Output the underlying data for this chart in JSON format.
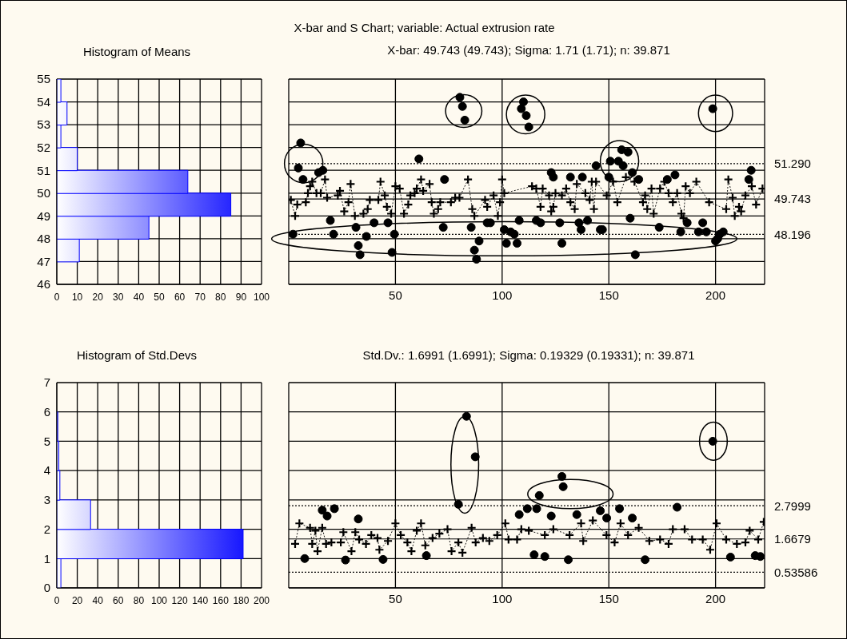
{
  "chart_data": [
    {
      "type": "histogram",
      "orientation": "horizontal",
      "title": "Histogram of Means",
      "bins": [
        46,
        47,
        48,
        49,
        50,
        51,
        52,
        53,
        54,
        55
      ],
      "values": [
        0,
        11,
        45,
        85,
        64,
        10,
        2,
        5,
        2
      ],
      "color": "#0000ff",
      "xlim": [
        0,
        100
      ],
      "xticks": [
        0,
        10,
        20,
        30,
        40,
        50,
        60,
        70,
        80,
        90,
        100
      ],
      "ylim": [
        46,
        55
      ],
      "yticks": [
        46,
        47,
        48,
        49,
        50,
        51,
        52,
        53,
        54,
        55
      ],
      "grid": true
    },
    {
      "type": "line",
      "title": "X-bar and S Chart; variable:  Actual extrusion rate",
      "subtitle": "X-bar: 49.743 (49.743); Sigma: 1.71 (1.71); n: 39.871",
      "xlim": [
        0,
        223
      ],
      "xticks": [
        50,
        100,
        150,
        200
      ],
      "ylim": [
        46,
        55
      ],
      "yticks": [
        46,
        47,
        48,
        49,
        50,
        51,
        52,
        53,
        54,
        55
      ],
      "tick_labels": "x",
      "grid": true,
      "ref_lines": [
        {
          "axis": "y",
          "value": 51.29,
          "label": "51.290",
          "line_style": "dotted"
        },
        {
          "axis": "y",
          "value": 49.743,
          "label": "49.743",
          "line_style": "solid"
        },
        {
          "axis": "y",
          "value": 48.196,
          "label": "48.196",
          "line_style": "dotted"
        }
      ],
      "series": [
        {
          "type": "line",
          "marker": "cross",
          "line_style": "dotted",
          "color": "#000000",
          "x": [
            1,
            3,
            4,
            8,
            9,
            10,
            11,
            13,
            15,
            17,
            18,
            23,
            24,
            26,
            28,
            29,
            31,
            35,
            37,
            38,
            42,
            43,
            45,
            46,
            48,
            50,
            52,
            54,
            56,
            57,
            59,
            60,
            62,
            63,
            66,
            67,
            68,
            70,
            71,
            76,
            78,
            80,
            84,
            86,
            87,
            92,
            93,
            96,
            98,
            99,
            100,
            101,
            114,
            116,
            118,
            119,
            122,
            123,
            124,
            125,
            128,
            130,
            132,
            134,
            135,
            139,
            141,
            142,
            143,
            144,
            149,
            152,
            154,
            158,
            162,
            166,
            167,
            168,
            170,
            171,
            174,
            176,
            178,
            180,
            182,
            184,
            185,
            186,
            188,
            191,
            197,
            205,
            206,
            208,
            209,
            211,
            212,
            214,
            217,
            219,
            222
          ],
          "values": [
            49.7,
            49.0,
            49.5,
            49.6,
            50.0,
            50.3,
            50.5,
            50.0,
            50.0,
            50.6,
            49.8,
            49.9,
            50.1,
            49.2,
            49.6,
            50.4,
            49.0,
            49.1,
            49.3,
            49.7,
            49.7,
            50.5,
            49.9,
            49.4,
            49.1,
            50.3,
            50.2,
            49.1,
            49.5,
            49.9,
            50.0,
            50.2,
            50.6,
            50.1,
            50.4,
            49.6,
            49.1,
            49.3,
            49.6,
            49.6,
            49.8,
            49.8,
            50.6,
            49.3,
            49.0,
            49.7,
            49.4,
            49.9,
            49.0,
            49.6,
            50.6,
            50.0,
            50.3,
            50.2,
            49.4,
            50.2,
            49.9,
            49.2,
            49.4,
            50.0,
            49.9,
            50.2,
            49.6,
            49.3,
            50.4,
            50.0,
            49.7,
            50.5,
            49.3,
            50.5,
            49.9,
            50.5,
            49.6,
            50.7,
            50.5,
            49.6,
            49.9,
            49.3,
            50.2,
            49.1,
            50.2,
            50.5,
            50.0,
            49.6,
            50.0,
            49.1,
            48.9,
            50.3,
            50.0,
            50.5,
            49.6,
            49.3,
            50.6,
            49.8,
            49.0,
            49.4,
            49.2,
            49.9,
            50.3,
            49.5,
            50.2
          ]
        },
        {
          "type": "scatter",
          "marker": "circle",
          "color": "#000000",
          "x": [
            2,
            4.5,
            5.6,
            6.7,
            14,
            16,
            19.5,
            21,
            31.5,
            32.6,
            33.4,
            36.4,
            40,
            46.5,
            48.4,
            49.5,
            61,
            72.4,
            73,
            80.2,
            81.4,
            82.5,
            85.5,
            87,
            88,
            89.2,
            93,
            94.5,
            101,
            102,
            104,
            105.7,
            107,
            108,
            109,
            110,
            111.3,
            112.5,
            116,
            118,
            123,
            124,
            127,
            128,
            132,
            136,
            137,
            137.6,
            140,
            144,
            146,
            147,
            150,
            150.7,
            154.5,
            156,
            156.7,
            159,
            160,
            161,
            162.4,
            164,
            173.6,
            177.4,
            181,
            183.7,
            186.7,
            192,
            194,
            195.7,
            198.7,
            200,
            201,
            202,
            203.6,
            215.6,
            216.7
          ],
          "values": [
            48.2,
            51.1,
            52.2,
            50.6,
            50.9,
            51.0,
            48.8,
            48.2,
            48.5,
            47.7,
            47.3,
            48.1,
            48.7,
            48.7,
            47.4,
            48.2,
            51.5,
            48.5,
            50.6,
            54.2,
            53.8,
            53.2,
            48.5,
            47.5,
            47.1,
            47.9,
            48.7,
            48.7,
            48.4,
            47.8,
            48.3,
            48.2,
            47.8,
            48.8,
            53.7,
            54.0,
            53.4,
            52.9,
            48.8,
            48.7,
            50.9,
            50.7,
            48.7,
            47.8,
            50.7,
            48.7,
            48.4,
            50.7,
            48.8,
            51.2,
            48.4,
            48.4,
            50.7,
            51.4,
            51.4,
            51.9,
            51.2,
            51.8,
            48.9,
            50.9,
            47.3,
            50.6,
            48.5,
            50.6,
            50.8,
            48.3,
            48.7,
            48.3,
            48.7,
            48.3,
            53.7,
            47.9,
            48.0,
            48.2,
            48.3,
            50.6,
            51.0
          ]
        }
      ]
    },
    {
      "type": "histogram",
      "orientation": "horizontal",
      "title": "Histogram of Std.Devs",
      "bins": [
        0,
        1,
        2,
        3,
        4,
        5,
        6,
        7
      ],
      "values": [
        4,
        182,
        33,
        3,
        2,
        1,
        0
      ],
      "color": "#0000ff",
      "xlim": [
        0,
        200
      ],
      "xticks": [
        0,
        20,
        40,
        60,
        80,
        100,
        120,
        140,
        160,
        180,
        200
      ],
      "ylim": [
        0,
        7
      ],
      "yticks": [
        0,
        1,
        2,
        3,
        4,
        5,
        6,
        7
      ],
      "grid": true
    },
    {
      "type": "line",
      "title": "Std.Dv.: 1.6991 (1.6991); Sigma: 0.19329 (0.19331); n: 39.871",
      "xlim": [
        0,
        223
      ],
      "xticks": [
        50,
        100,
        150,
        200
      ],
      "ylim": [
        0,
        7
      ],
      "yticks": [
        0,
        1,
        2,
        3,
        4,
        5,
        6,
        7
      ],
      "tick_labels": "x",
      "grid": true,
      "ref_lines": [
        {
          "axis": "y",
          "value": 2.7999,
          "label": "2.7999",
          "line_style": "dotted"
        },
        {
          "axis": "y",
          "value": 1.6679,
          "label": "1.6679",
          "line_style": "solid"
        },
        {
          "axis": "y",
          "value": 0.53586,
          "label": "0.53586",
          "line_style": "dotted"
        }
      ],
      "series": [
        {
          "type": "line",
          "marker": "cross",
          "line_style": "dotted",
          "color": "#000000",
          "x": [
            3,
            5,
            10,
            11,
            12.5,
            13.5,
            15.7,
            17.5,
            20,
            24.4,
            25.6,
            29.4,
            31.2,
            33,
            36.2,
            38.7,
            41.6,
            42.5,
            46.5,
            50,
            52.5,
            55.6,
            57.5,
            60,
            62,
            64,
            67.4,
            70.6,
            74.4,
            76.3,
            79.5,
            81.4,
            85.7,
            87.6,
            91,
            94,
            97.7,
            101.5,
            103,
            107,
            109,
            112.5,
            120,
            124,
            131.6,
            137,
            138,
            142.5,
            148.9,
            152.7,
            155.5,
            159,
            164,
            169,
            174,
            178,
            180,
            185.5,
            189,
            194,
            197.5,
            200.5,
            205,
            210,
            214,
            216,
            220,
            222.6
          ],
          "values": [
            1.5,
            2.2,
            2.05,
            1.5,
            1.95,
            1.25,
            2.05,
            1.5,
            1.55,
            1.55,
            1.9,
            1.25,
            1.9,
            1.65,
            1.5,
            1.8,
            1.7,
            1.3,
            1.6,
            2.2,
            1.8,
            1.55,
            1.25,
            1.95,
            2.2,
            1.45,
            1.7,
            1.85,
            2.0,
            1.25,
            1.55,
            1.2,
            2.05,
            1.55,
            1.7,
            1.6,
            1.8,
            2.2,
            1.65,
            1.65,
            2.0,
            1.95,
            1.8,
            2.0,
            1.8,
            2.2,
            1.6,
            2.3,
            1.8,
            1.55,
            2.2,
            1.8,
            2.05,
            1.6,
            1.65,
            1.5,
            2.0,
            2.0,
            1.65,
            1.65,
            1.3,
            2.2,
            1.65,
            1.5,
            1.55,
            1.95,
            1.65,
            2.25
          ]
        },
        {
          "type": "scatter",
          "marker": "circle",
          "color": "#000000",
          "x": [
            7.5,
            15.7,
            18,
            21.4,
            26.6,
            32.6,
            44.2,
            64.5,
            79.5,
            83.3,
            87.4,
            108,
            111.8,
            115,
            116.2,
            117.4,
            120,
            123,
            128,
            128.6,
            131,
            135,
            146,
            149,
            155,
            161,
            167,
            182,
            198.7,
            207,
            218.6,
            221
          ],
          "values": [
            1.0,
            2.65,
            2.45,
            2.7,
            0.95,
            2.35,
            0.97,
            1.1,
            2.85,
            5.85,
            4.47,
            2.5,
            2.7,
            1.13,
            2.7,
            3.15,
            1.07,
            2.45,
            3.8,
            3.45,
            0.96,
            2.5,
            2.63,
            2.38,
            2.7,
            2.38,
            0.96,
            2.75,
            5.0,
            1.05,
            1.1,
            1.07
          ]
        }
      ]
    }
  ]
}
